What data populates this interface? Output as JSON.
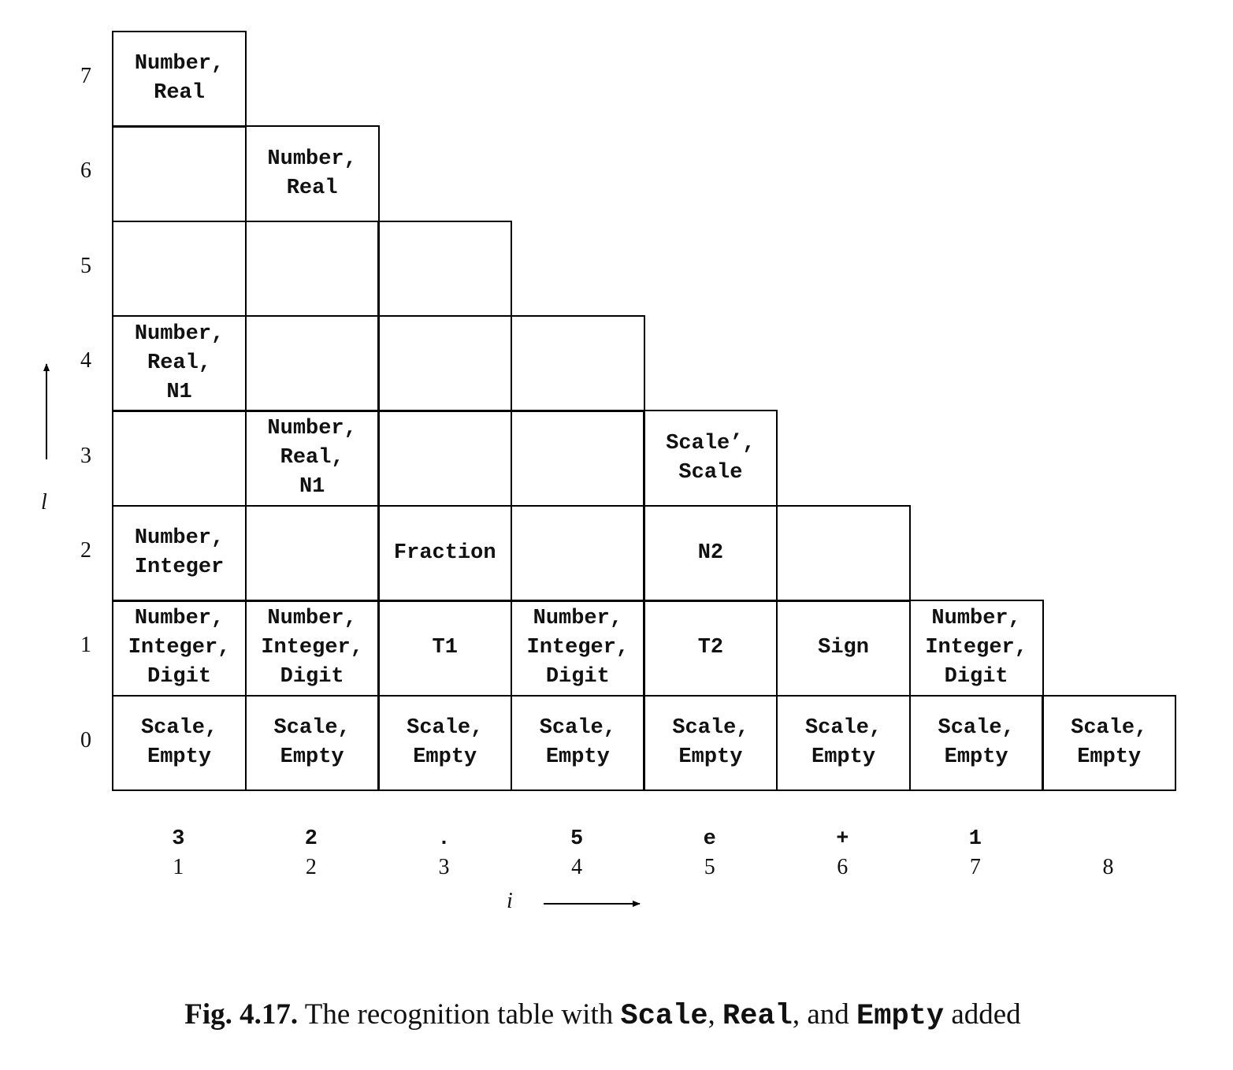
{
  "table": {
    "cells": [
      {
        "i": 1,
        "l": 7,
        "lines": [
          "Number,",
          "Real"
        ]
      },
      {
        "i": 1,
        "l": 6,
        "lines": []
      },
      {
        "i": 2,
        "l": 6,
        "lines": [
          "Number,",
          "Real"
        ]
      },
      {
        "i": 1,
        "l": 5,
        "lines": []
      },
      {
        "i": 2,
        "l": 5,
        "lines": []
      },
      {
        "i": 3,
        "l": 5,
        "lines": []
      },
      {
        "i": 1,
        "l": 4,
        "lines": [
          "Number,",
          "Real,",
          "N1"
        ]
      },
      {
        "i": 2,
        "l": 4,
        "lines": []
      },
      {
        "i": 3,
        "l": 4,
        "lines": []
      },
      {
        "i": 4,
        "l": 4,
        "lines": []
      },
      {
        "i": 1,
        "l": 3,
        "lines": []
      },
      {
        "i": 2,
        "l": 3,
        "lines": [
          "Number,",
          "Real,",
          "N1"
        ]
      },
      {
        "i": 3,
        "l": 3,
        "lines": []
      },
      {
        "i": 4,
        "l": 3,
        "lines": []
      },
      {
        "i": 5,
        "l": 3,
        "lines": [
          "Scale’,",
          "Scale"
        ]
      },
      {
        "i": 1,
        "l": 2,
        "lines": [
          "Number,",
          "Integer"
        ]
      },
      {
        "i": 2,
        "l": 2,
        "lines": []
      },
      {
        "i": 3,
        "l": 2,
        "lines": [
          "Fraction"
        ]
      },
      {
        "i": 4,
        "l": 2,
        "lines": []
      },
      {
        "i": 5,
        "l": 2,
        "lines": [
          "N2"
        ]
      },
      {
        "i": 6,
        "l": 2,
        "lines": []
      },
      {
        "i": 1,
        "l": 1,
        "lines": [
          "Number,",
          "Integer,",
          "Digit"
        ]
      },
      {
        "i": 2,
        "l": 1,
        "lines": [
          "Number,",
          "Integer,",
          "Digit"
        ]
      },
      {
        "i": 3,
        "l": 1,
        "lines": [
          "T1"
        ]
      },
      {
        "i": 4,
        "l": 1,
        "lines": [
          "Number,",
          "Integer,",
          "Digit"
        ]
      },
      {
        "i": 5,
        "l": 1,
        "lines": [
          "T2"
        ]
      },
      {
        "i": 6,
        "l": 1,
        "lines": [
          "Sign"
        ]
      },
      {
        "i": 7,
        "l": 1,
        "lines": [
          "Number,",
          "Integer,",
          "Digit"
        ]
      },
      {
        "i": 1,
        "l": 0,
        "lines": [
          "Scale,",
          "Empty"
        ]
      },
      {
        "i": 2,
        "l": 0,
        "lines": [
          "Scale,",
          "Empty"
        ]
      },
      {
        "i": 3,
        "l": 0,
        "lines": [
          "Scale,",
          "Empty"
        ]
      },
      {
        "i": 4,
        "l": 0,
        "lines": [
          "Scale,",
          "Empty"
        ]
      },
      {
        "i": 5,
        "l": 0,
        "lines": [
          "Scale,",
          "Empty"
        ]
      },
      {
        "i": 6,
        "l": 0,
        "lines": [
          "Scale,",
          "Empty"
        ]
      },
      {
        "i": 7,
        "l": 0,
        "lines": [
          "Scale,",
          "Empty"
        ]
      },
      {
        "i": 8,
        "l": 0,
        "lines": [
          "Scale,",
          "Empty"
        ]
      }
    ],
    "row_labels": [
      "0",
      "1",
      "2",
      "3",
      "4",
      "5",
      "6",
      "7"
    ],
    "column_labels": [
      "1",
      "2",
      "3",
      "4",
      "5",
      "6",
      "7",
      "8"
    ],
    "input_tokens": [
      "3",
      "2",
      ".",
      "5",
      "e",
      "+",
      "1",
      ""
    ],
    "vertical_axis_letter": "l",
    "horizontal_axis_letter": "i"
  },
  "caption": {
    "fig_number": "Fig. 4.17.",
    "text_before": "The recognition table with",
    "code1": "Scale",
    "sep1": ",",
    "code2": "Real",
    "sep2": ", and",
    "code3": "Empty",
    "text_after": "added"
  }
}
